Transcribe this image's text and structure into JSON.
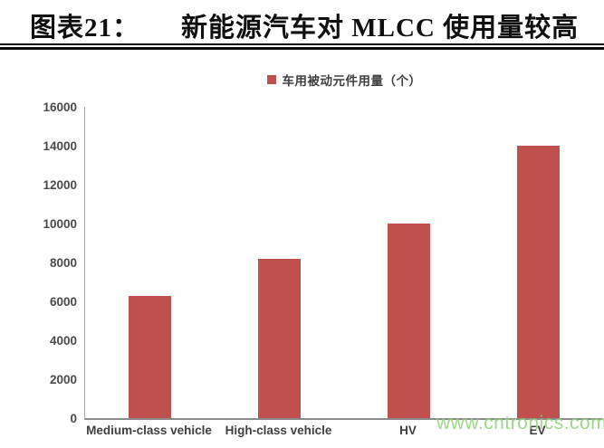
{
  "header": {
    "label": "图表21：",
    "title": "新能源汽车对 MLCC 使用量较高"
  },
  "chart_data": {
    "type": "bar",
    "title": "图表21：新能源汽车对 MLCC 使用量较高",
    "legend": [
      "车用被动元件用量（个）"
    ],
    "legend_position": "top-center",
    "categories": [
      "Medium-class vehicle",
      "High-class vehicle",
      "HV",
      "EV"
    ],
    "values": [
      6300,
      8200,
      10000,
      14000
    ],
    "xlabel": "",
    "ylabel": "",
    "ylim": [
      0,
      16000
    ],
    "yticks": [
      0,
      2000,
      4000,
      6000,
      8000,
      10000,
      12000,
      14000,
      16000
    ],
    "grid": false,
    "bar_color": "#c0504d"
  },
  "watermark": {
    "text": "www.cntronics.com",
    "color": "#93d77c"
  }
}
